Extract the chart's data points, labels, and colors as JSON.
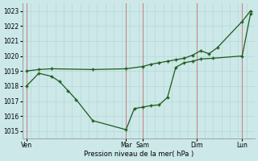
{
  "xlabel": "Pression niveau de la mer( hPa )",
  "bg_color": "#cce8e8",
  "grid_color_minor": "#b8d8d8",
  "grid_color_major": "#c0a0a0",
  "line_color": "#1a5c1a",
  "ylim": [
    1014.5,
    1023.5
  ],
  "xlim": [
    0,
    28
  ],
  "day_labels": [
    "Ven",
    "Mar",
    "Sam",
    "Dim",
    "Lun"
  ],
  "day_x": [
    0.5,
    12.5,
    14.5,
    21.0,
    26.5
  ],
  "vline_x": [
    0.5,
    12.5,
    14.5,
    21.0,
    26.5
  ],
  "series1_x": [
    0.5,
    2.0,
    3.5,
    4.5,
    5.5,
    6.5,
    8.5,
    12.5,
    13.5,
    14.5,
    15.5,
    16.5,
    17.5,
    18.5,
    19.5,
    20.5,
    21.5,
    23.0,
    26.5,
    27.5
  ],
  "series1_y": [
    1018.0,
    1018.85,
    1018.65,
    1018.3,
    1017.7,
    1017.1,
    1015.7,
    1015.1,
    1016.5,
    1016.6,
    1016.7,
    1016.75,
    1017.25,
    1019.25,
    1019.55,
    1019.65,
    1019.8,
    1019.85,
    1020.0,
    1022.8
  ],
  "series2_x": [
    0.5,
    2.0,
    3.5,
    8.5,
    12.5,
    14.5,
    15.5,
    16.5,
    17.5,
    18.5,
    19.5,
    20.5,
    21.5,
    22.5,
    23.5,
    26.5,
    27.5
  ],
  "series2_y": [
    1019.0,
    1019.1,
    1019.15,
    1019.1,
    1019.15,
    1019.3,
    1019.45,
    1019.55,
    1019.65,
    1019.75,
    1019.85,
    1020.05,
    1020.35,
    1020.15,
    1020.55,
    1022.3,
    1023.0
  ],
  "yticks": [
    1015,
    1016,
    1017,
    1018,
    1019,
    1020,
    1021,
    1022,
    1023
  ]
}
